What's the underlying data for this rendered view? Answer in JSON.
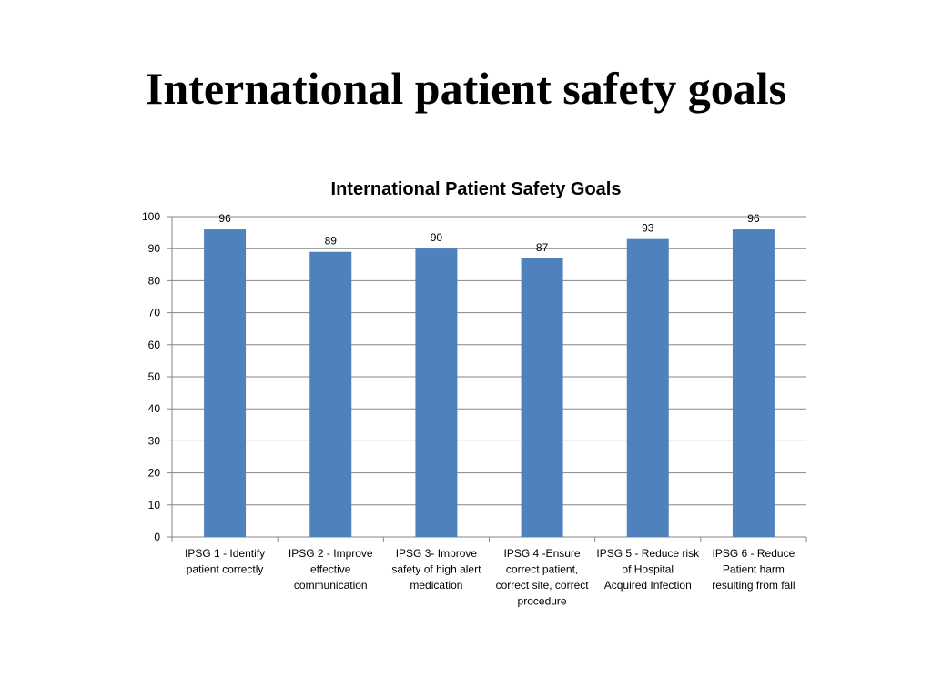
{
  "slide": {
    "title": "International patient safety goals"
  },
  "chart_data": {
    "type": "bar",
    "title": "International Patient Safety Goals",
    "categories": [
      [
        "IPSG 1 - Identify",
        "patient correctly"
      ],
      [
        "IPSG 2 - Improve",
        "effective",
        "communication"
      ],
      [
        "IPSG 3- Improve",
        "safety of high alert",
        "medication"
      ],
      [
        "IPSG 4 -Ensure",
        "correct patient,",
        "correct site, correct",
        "procedure"
      ],
      [
        "IPSG 5 - Reduce risk",
        "of Hospital",
        "Acquired Infection"
      ],
      [
        "IPSG 6 - Reduce",
        "Patient harm",
        "resulting from fall"
      ]
    ],
    "values": [
      96,
      89,
      90,
      87,
      93,
      96
    ],
    "ylim": [
      0,
      100
    ],
    "yticks": [
      0,
      10,
      20,
      30,
      40,
      50,
      60,
      70,
      80,
      90,
      100
    ],
    "grid": true,
    "legend": "none",
    "bar_color": "#4F81BD",
    "grid_color": "#868686"
  }
}
